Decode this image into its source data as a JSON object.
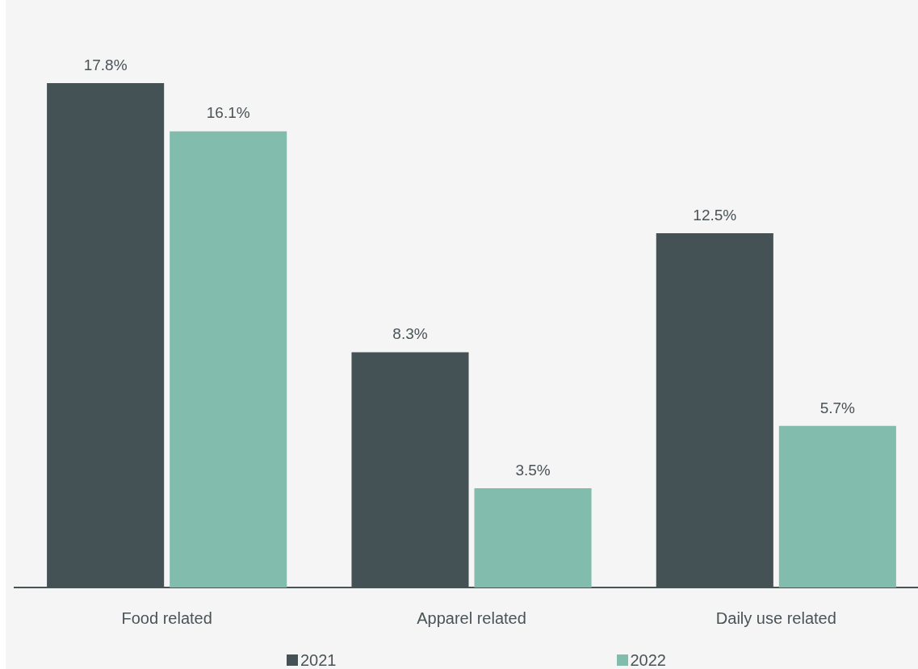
{
  "chart_data": {
    "type": "bar",
    "categories": [
      "Food related",
      "Apparel related",
      "Daily use related"
    ],
    "series": [
      {
        "name": "2021",
        "color": "#445256",
        "values": [
          17.8,
          8.3,
          12.5
        ],
        "value_labels": [
          "17.8%",
          "8.3%",
          "12.5%"
        ]
      },
      {
        "name": "2022",
        "color": "#82bcad",
        "values": [
          16.1,
          3.5,
          5.7
        ],
        "value_labels": [
          "16.1%",
          "3.5%",
          "5.7%"
        ]
      }
    ],
    "grid": false,
    "legend": "bottom",
    "tick_labels": "x"
  }
}
